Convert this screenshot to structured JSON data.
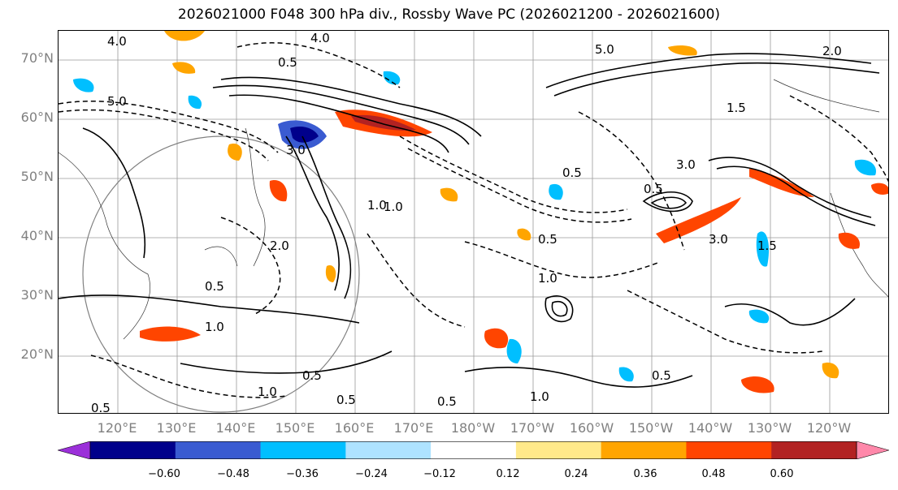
{
  "title": "2026021000 F048 300 hPa div., Rossby Wave PC (2026021200 - 2026021600)",
  "lat_labels": [
    "70°N",
    "60°N",
    "50°N",
    "40°N",
    "30°N",
    "20°N"
  ],
  "lon_labels": [
    "120°E",
    "130°E",
    "140°E",
    "150°E",
    "160°E",
    "170°E",
    "180°W",
    "170°W",
    "160°W",
    "150°W",
    "140°W",
    "130°W",
    "120°W"
  ],
  "colorbar": {
    "ticks": [
      "−0.60",
      "−0.48",
      "−0.36",
      "−0.24",
      "−0.12",
      "0.12",
      "0.24",
      "0.36",
      "0.48",
      "0.60"
    ],
    "colors": [
      "#9b30d9",
      "#00008b",
      "#3a5bd1",
      "#00bfff",
      "#aee3ff",
      "#ffffff",
      "#ffe98a",
      "#ffa500",
      "#ff4500",
      "#b22222",
      "#ff88aa"
    ]
  },
  "contour_labels": [
    "5.0",
    "4.0",
    "0.5",
    "1.0",
    "2.0",
    "3.0",
    "1.5",
    "0.5",
    "1.0",
    "0.5",
    "3.0",
    "0.5",
    "1.0",
    "0.5",
    "0.5",
    "2.0",
    "1.0",
    "0.5",
    "0.5",
    "1.0",
    "3.0",
    "5.0",
    "4.0",
    "1.5",
    "0.5",
    "1.0",
    "0.5"
  ]
}
